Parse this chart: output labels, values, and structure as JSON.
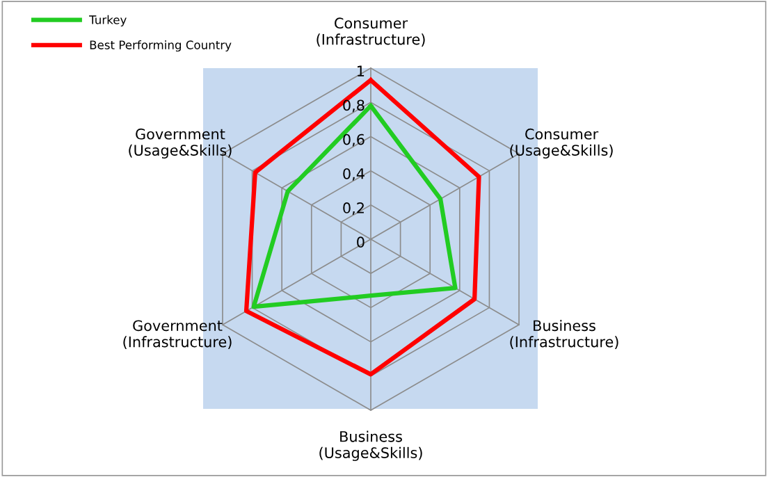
{
  "chart_data": {
    "type": "radar",
    "categories": [
      "Consumer\n(Infrastructure)",
      "Consumer\n(Usage&Skills)",
      "Business\n(Infrastructure)",
      "Business\n(Usage&Skills)",
      "Government\n(Infrastructure)",
      "Government\n(Usage&Skills)"
    ],
    "series": [
      {
        "name": "Turkey",
        "color": "#22cc22",
        "values": [
          0.78,
          0.47,
          0.57,
          0.33,
          0.79,
          0.56
        ]
      },
      {
        "name": "Best Performing Country",
        "color": "#ff0000",
        "values": [
          0.93,
          0.73,
          0.7,
          0.79,
          0.84,
          0.78
        ]
      }
    ],
    "ylim": [
      0,
      1
    ],
    "yticks": [
      {
        "value": 0,
        "label": "0"
      },
      {
        "value": 0.2,
        "label": "0,2"
      },
      {
        "value": 0.4,
        "label": "0,4"
      },
      {
        "value": 0.6,
        "label": "0,6"
      },
      {
        "value": 0.8,
        "label": "0,8"
      },
      {
        "value": 1,
        "label": "1"
      }
    ],
    "grid": true,
    "legend": "top left",
    "marker": "none",
    "line_style": "solid"
  }
}
